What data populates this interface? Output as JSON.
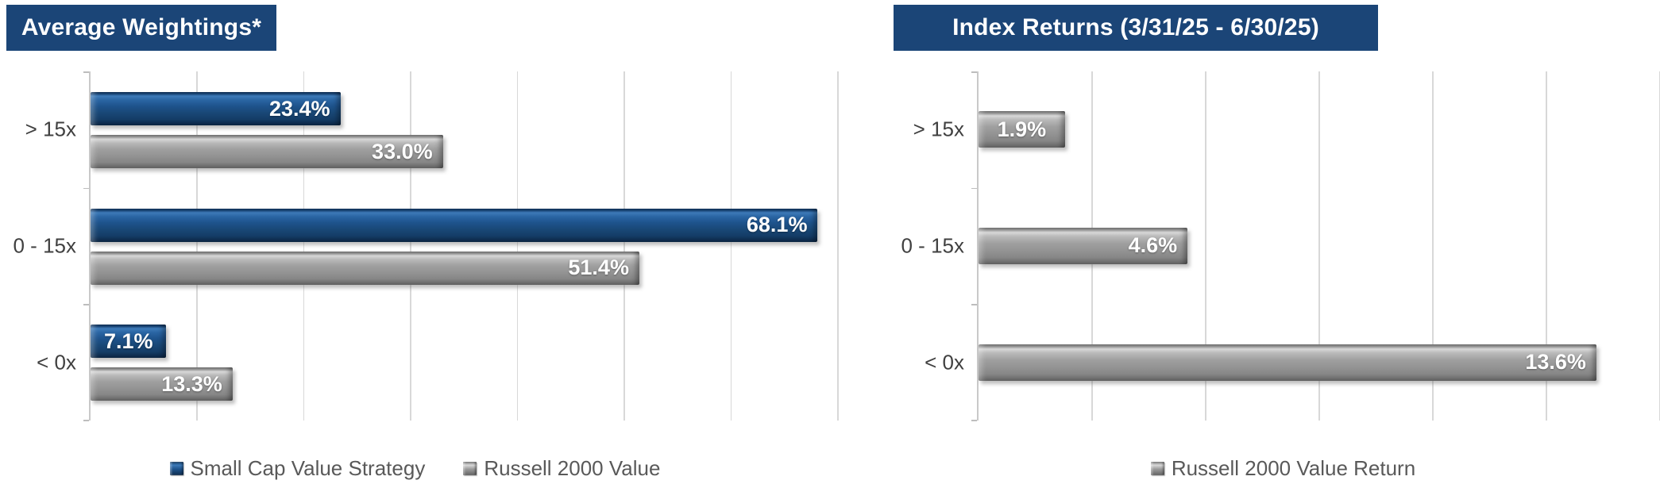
{
  "colors": {
    "title_bg": "#1b4577",
    "title_text": "#ffffff",
    "bar_blue": "#1f4e79",
    "bar_gray": "#8c8c8c",
    "value_label_text": "#ffffff",
    "category_text": "#404040",
    "legend_text": "#595959",
    "gridline": "#d8d8d8",
    "axis": "#c9c9c9"
  },
  "chart_data": [
    {
      "type": "bar",
      "orientation": "horizontal",
      "title": "Average Weightings*",
      "categories": [
        "> 15x",
        "0 - 15x",
        "< 0x"
      ],
      "series": [
        {
          "name": "Small Cap Value Strategy",
          "color": "#1f4e79",
          "values": [
            23.4,
            68.1,
            7.1
          ],
          "labels": [
            "23.4%",
            "68.1%",
            "7.1%"
          ]
        },
        {
          "name": "Russell 2000 Value",
          "color": "#8c8c8c",
          "values": [
            33.0,
            51.4,
            13.3
          ],
          "labels": [
            "33.0%",
            "51.4%",
            "13.3%"
          ]
        }
      ],
      "xlim": [
        0,
        70
      ],
      "grid_step": 10,
      "grid": true,
      "x_tick_labels_visible": false,
      "legend_position": "bottom"
    },
    {
      "type": "bar",
      "orientation": "horizontal",
      "title": "Index Returns (3/31/25 - 6/30/25)",
      "categories": [
        "> 15x",
        "0 - 15x",
        "< 0x"
      ],
      "series": [
        {
          "name": "Russell 2000 Value Return",
          "color": "#8c8c8c",
          "values": [
            1.9,
            4.6,
            13.6
          ],
          "labels": [
            "1.9%",
            "4.6%",
            "13.6%"
          ]
        }
      ],
      "xlim": [
        0,
        15
      ],
      "grid_step": 2.5,
      "grid": true,
      "x_tick_labels_visible": false,
      "legend_position": "bottom"
    }
  ]
}
